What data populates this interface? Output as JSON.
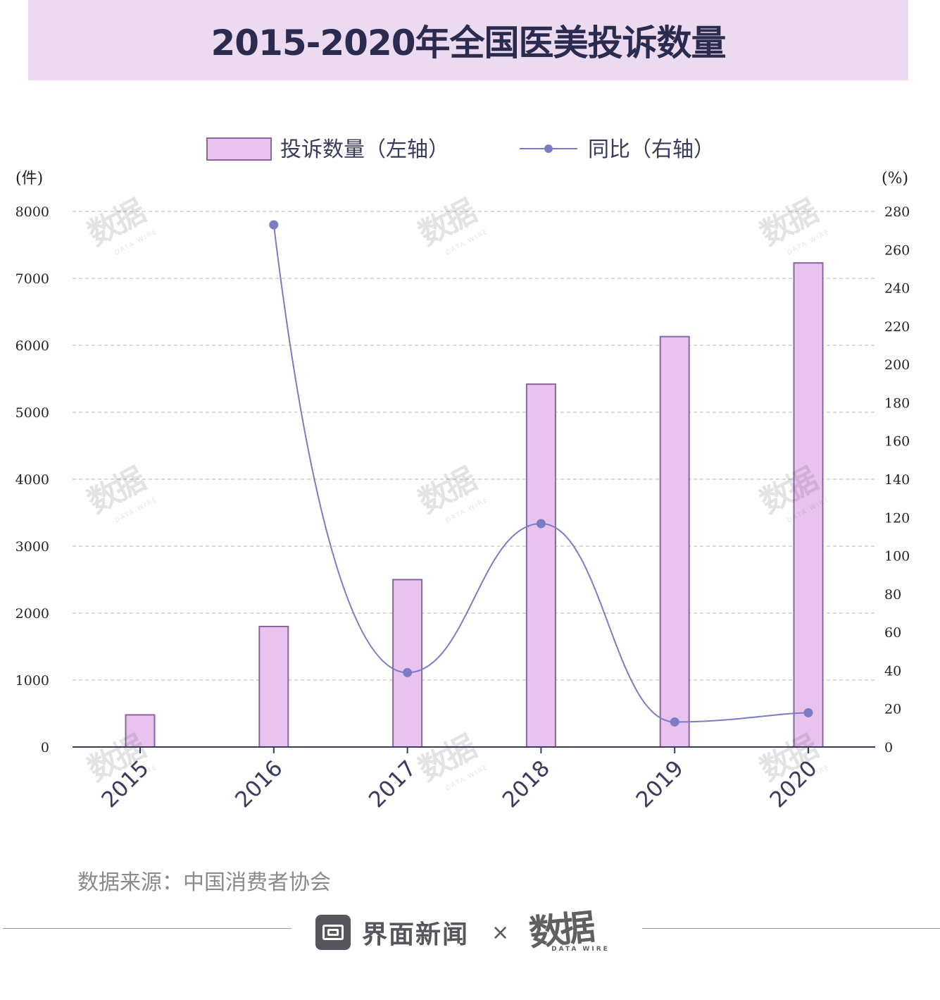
{
  "title": "2015-2020年全国医美投诉数量",
  "source": "数据来源：中国消费者协会",
  "footer": {
    "brand": "界面新闻",
    "times": "×",
    "partner_logo": "数据",
    "partner_logo_sub": "DATA WIRE"
  },
  "watermark": {
    "main": "数据",
    "sub": "DATA WIRE"
  },
  "colors": {
    "title_bg": "#ecdaf1",
    "title_text": "#2a2b4e",
    "bar_fill": "#e7c3ee",
    "bar_stroke": "#8e64a0",
    "line": "#7c7cc4",
    "axis": "#3a3b5c",
    "grid": "#b5b5b5"
  },
  "chart_data": {
    "type": "bar+line",
    "categories": [
      "2015",
      "2016",
      "2017",
      "2018",
      "2019",
      "2020"
    ],
    "series": [
      {
        "name": "投诉数量（左轴）",
        "type": "bar",
        "axis": "left",
        "values": [
          480,
          1800,
          2500,
          5420,
          6130,
          7230
        ]
      },
      {
        "name": "同比（右轴）",
        "type": "line",
        "axis": "right",
        "values": [
          null,
          273,
          38.9,
          116.8,
          13.1,
          17.9
        ]
      }
    ],
    "left_axis": {
      "unit": "(件)",
      "ylim": [
        0,
        8000
      ],
      "ticks": [
        "0",
        "1000",
        "2000",
        "3000",
        "4000",
        "5000",
        "6000",
        "7000",
        "8000"
      ]
    },
    "right_axis": {
      "unit": "(%)",
      "ylim": [
        0,
        280
      ],
      "ticks": [
        "0",
        "20",
        "40",
        "60",
        "80",
        "100",
        "120",
        "140",
        "160",
        "180",
        "200",
        "220",
        "240",
        "260",
        "280"
      ]
    },
    "grid": true,
    "legend_position": "top-center"
  }
}
